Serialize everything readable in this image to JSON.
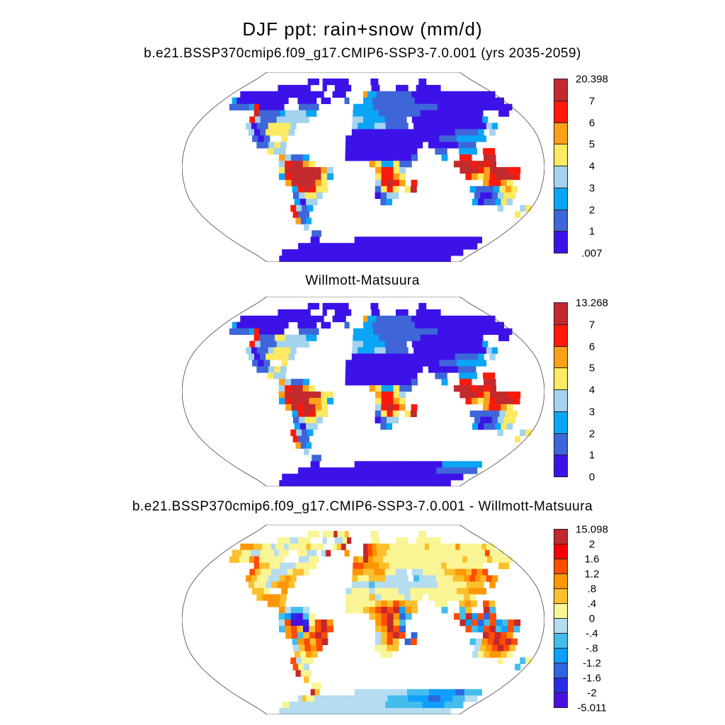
{
  "figure": {
    "title": "DJF ppt: rain+snow (mm/d)"
  },
  "colors": {
    "background": "#ffffff",
    "text": "#000000",
    "map_outline": "#444444",
    "ocean": "#ffffff"
  },
  "palettes": {
    "precip8": {
      "0": "#3D12E8",
      "1": "#3E66D9",
      "2": "#0AA5F7",
      "3": "#A3D3EE",
      "4": "#FBEA62",
      "5": "#FDA019",
      "6": "#FB1A0A",
      "7": "#C32A2E"
    },
    "diff12": {
      "0": "#4A10DF",
      "1": "#2A2BE8",
      "2": "#2E66DF",
      "3": "#0F9FFD",
      "4": "#44BCEC",
      "5": "#B5DCEF",
      "6": "#FAF594",
      "7": "#FBC02D",
      "8": "#FC9703",
      "9": "#FF4D00",
      "A": "#F60000",
      "B": "#C3282D"
    }
  },
  "chart_data": {
    "type": "heatmap",
    "subtype": "global_precipitation_map_panels",
    "projection": "robinson",
    "season": "DJF",
    "variable": "ppt: rain+snow",
    "units": "mm/d",
    "grid_encoding": "Each panel grid is 30 rows (90N to 90S, 6 deg) x 60 columns (180W to 180E, 6 deg). '.' = ocean/no data; any other character indexes the panel palette (binned value).",
    "panels": [
      {
        "title": "b.e21.BSSP370cmip6.f09_g17.CMIP6-SSP3-7.0.001 (yrs 2035-2059)",
        "role": "model climatology",
        "palette": "precip8",
        "min": 0.007,
        "max": 20.398,
        "bin_edges": [
          0.007,
          1,
          2,
          3,
          4,
          5,
          6,
          7,
          20.398
        ],
        "colorbar_labels": [
          "20.398",
          "7",
          "6",
          "5",
          "4",
          "3",
          "2",
          "1",
          ".007"
        ],
        "colorbar_colors": [
          "#C32A2E",
          "#FB1A0A",
          "#FDA019",
          "#FBEA62",
          "#A3D3EE",
          "#0AA5F7",
          "#3E66D9",
          "#3D12E8"
        ],
        "grid": [
          "............................................................",
          "...............000.0000000......00...........00.............",
          ".........00000000...0..0000.....00....000..000000...........",
          "..0000000000000000000..000....522111111110000000000000000000",
          "..200000000000..0000.00...1...221111111110000000000000000000",
          "...11112600000...1111.......22221111111111111000000000000000",
          ".........711112333322.......2222211111111000000000000...00..",
          ".........63111333333........3322221111.00000000000002.......",
          ".........301144443..........3222331111.000000000000032......",
          "..........30144443..........00000000000000000011112.3.......",
          "...........101..4..........000000000000000011122222.........",
          "............11343..........0000000000000.00000111...........",
          "..............433..........000000000000...11..222.66........",
          "................53112......000000000001....2..66..77........",
          "................367754.........5422411.......7776767........",
          "................477777753.......56643.........7776577766....",
          "................267777742.......46654..........654567776....",
          ".................5777754........36765.6...........56654.....",
          "..................267644........1464.47.........21112454....",
          "..................13443.........0133.............1001344....",
          "..................2033...........12..............2011243....",
          ".................6312.................................3...34",
          ".................611......................................4.",
          ".................512........................................",
          "..................3.........................................",
          "...................11.......................................",
          "..................00........00000000000000000000000000000...",
          "..............00000000000000000000000000000000000000000000..",
          "........0000000000000000000000000000000000000000000000000...",
          ".....000000000000000000000000000000000000000000000000000...."
        ]
      },
      {
        "title": "Willmott-Matsuura",
        "role": "observations",
        "palette": "precip8",
        "min": 0,
        "max": 13.268,
        "bin_edges": [
          0,
          1,
          2,
          3,
          4,
          5,
          6,
          7,
          13.268
        ],
        "colorbar_labels": [
          "13.268",
          "7",
          "6",
          "5",
          "4",
          "3",
          "2",
          "1",
          "0"
        ],
        "colorbar_colors": [
          "#C32A2E",
          "#FB1A0A",
          "#FDA019",
          "#FBEA62",
          "#A3D3EE",
          "#0AA5F7",
          "#3E66D9",
          "#3D12E8"
        ],
        "grid": [
          "............................................................",
          "...............000.0000000......00...........00.............",
          ".........00000000...0..0000.....00....000..000000...........",
          "..0000000000000000000..000....522111111110000000000000000000",
          "..200000000000..0000.00...1...221111111110000000000000000000",
          "...11112600000...1111.......22221111111111111000000000000000",
          ".........611144333322.......2222211111111000000000000...00..",
          ".........63111333333........3322221111.00000000000002.......",
          ".........301134443..........3222331111.000000000000032......",
          "..........30144443..........00000000000000000011112.3.......",
          "...........101..4..........000000000000000011122222.........",
          "............11343..........0000000000000.00000111...........",
          "..............433..........000000000000...11..222.66........",
          "................53112......000000000001....2..66..77........",
          "................367754.........5422411.......7776767........",
          "................577777744.......56643.........7776577766....",
          "................267775542.......46654..........654567776....",
          ".................5767754........36765.6...........56654.....",
          "..................267644........1464.47.........11111344....",
          "..................13443.........0133.............1001344....",
          "..................2033...........12..............2011243....",
          ".................6312.................................3...34",
          ".................611......................................4.",
          ".................512........................................",
          "..................3.........................................",
          "...................11.......................................",
          "..................00........00000000000000000000222222222...",
          "..............00000000000000000000000000000000001111111111..",
          "........0000000000000000000000000000000000000000000000000...",
          ".....000000000000000000000000000000000000000000000000000...."
        ]
      },
      {
        "title": "b.e21.BSSP370cmip6.f09_g17.CMIP6-SSP3-7.0.001 - Willmott-Matsuura",
        "role": "model minus observations difference",
        "palette": "diff12",
        "min": -5.011,
        "max": 15.098,
        "bin_edges": [
          -5.011,
          -2,
          -1.6,
          -1.2,
          -0.8,
          -0.4,
          0,
          0.4,
          0.8,
          1.2,
          1.6,
          2,
          15.098
        ],
        "colorbar_labels": [
          "15.098",
          "2",
          "1.6",
          "1.2",
          ".8",
          ".4",
          "0",
          "-.4",
          "-.8",
          "-1.2",
          "-1.6",
          "-2",
          "-5.011"
        ],
        "colorbar_colors": [
          "#C3282D",
          "#F60000",
          "#FF4D00",
          "#FC9703",
          "#FBC02D",
          "#FAF594",
          "#B5DCEF",
          "#44BCEC",
          "#0F9FFD",
          "#2E66DF",
          "#2A2BE8",
          "#4A10DF"
        ],
        "grid": [
          "............................................................",
          "...............666.666B667......66...........66.............",
          ".........66655666...5..556B.....66....666..666666...........",
          "..8887766566566667666..67B....B98777666666667666666866666766",
          "..776655666566..6655.5B...8...B98776666666666666666666669666",
          "...77668966666...5566.......87B87766666666666666667666676666",
          ".........977665556666.......9988877666666666676666666...77..",
          ".........97665556776........8877886655.55666677887989.......",
          ".........876655787..........7667775555.455566677898798......",
          "..........76657887..........55545555555555566666777.8.......",
          "...........776..8..........566656666556666666677888.........",
          "............78887..........6666756666566.66666676...........",
          "..............887..........666667879877...66..787.97........",
          "................85445......666789B9B387....4..47..B4........",
          "................431046.........789B824.......94B3929........",
          "................5900169B8.......89B74.........B39249349B....",
          "................4897079B9.......78B92..........9439B4394....",
          ".................89479B9........579B9.2...........B9B98.....",
          "..................48979B........5797.29.........4589B9B9....",
          "..................57989.........6677.............5789B97....",
          "..................7687...........66..............5678876....",
          ".................9566.................................6...46",
          ".................965......................................4.",
          ".................B66........................................",
          "..................7.........................................",
          "...................66.......................................",
          "..................B7........55555555555544444333333224444...",
          "..............57665555555555555555554444433333222333444555..",
          "........6655555555555555555555555555444444444433333344444...",
          ".....555555555555555555555555555555555555555555555555555...."
        ]
      }
    ]
  }
}
